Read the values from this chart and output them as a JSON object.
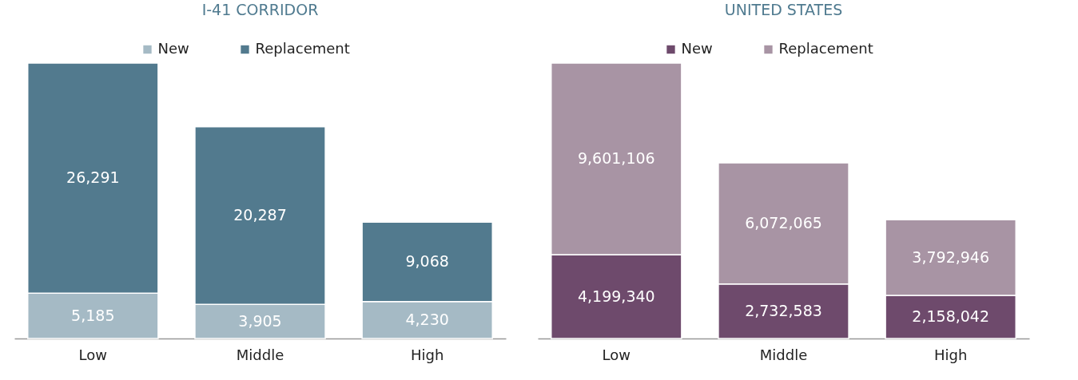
{
  "chart_data": [
    {
      "type": "bar",
      "title": "I-41 CORRIDOR",
      "categories": [
        "Low",
        "Middle",
        "High"
      ],
      "stacked": true,
      "legend": "top",
      "series": [
        {
          "name": "New",
          "color": "#a5bac5",
          "values": [
            5185,
            3905,
            4230
          ],
          "value_labels": [
            "5,185",
            "3,905",
            "4,230"
          ]
        },
        {
          "name": "Replacement",
          "color": "#527a8e",
          "values": [
            26291,
            20287,
            9068
          ],
          "value_labels": [
            "26,291",
            "20,287",
            "9,068"
          ]
        }
      ]
    },
    {
      "type": "bar",
      "title": "UNITED STATES",
      "categories": [
        "Low",
        "Middle",
        "High"
      ],
      "stacked": true,
      "legend": "top",
      "series": [
        {
          "name": "New",
          "color": "#6e4a6c",
          "values": [
            4199340,
            2732583,
            2158042
          ],
          "value_labels": [
            "4,199,340",
            "2,732,583",
            "2,158,042"
          ]
        },
        {
          "name": "Replacement",
          "color": "#a894a4",
          "values": [
            9601106,
            6072065,
            3792946
          ],
          "value_labels": [
            "9,601,106",
            "6,072,065",
            "3,792,946"
          ]
        }
      ]
    }
  ]
}
